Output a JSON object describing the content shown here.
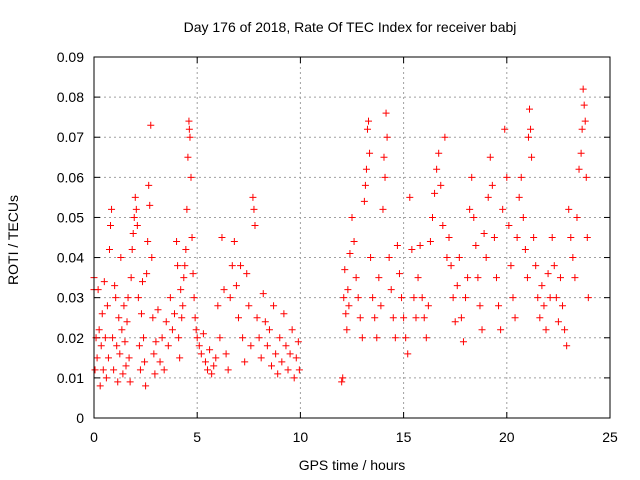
{
  "chart_data": {
    "type": "scatter",
    "title": "Day 176 of 2018, Rate Of TEC Index for receiver babj",
    "xlabel": "GPS time / hours",
    "ylabel": "ROTI / TECUs",
    "xlim": [
      0,
      25
    ],
    "ylim": [
      0,
      0.09
    ],
    "xticks": [
      0,
      5,
      10,
      15,
      20,
      25
    ],
    "yticks": [
      0,
      0.01,
      0.02,
      0.03,
      0.04,
      0.05,
      0.06,
      0.07,
      0.08,
      0.09
    ],
    "xtick_labels": [
      "0",
      "5",
      "10",
      "15",
      "20",
      "25"
    ],
    "ytick_labels": [
      "0",
      "0.01",
      "0.02",
      "0.03",
      "0.04",
      "0.05",
      "0.06",
      "0.07",
      "0.08",
      "0.09"
    ],
    "grid": true,
    "marker": "+",
    "marker_color": "#ff0000",
    "points": [
      [
        0.0,
        0.032
      ],
      [
        0.0,
        0.035
      ],
      [
        0.05,
        0.012
      ],
      [
        0.1,
        0.02
      ],
      [
        0.15,
        0.015
      ],
      [
        0.2,
        0.032
      ],
      [
        0.25,
        0.022
      ],
      [
        0.3,
        0.008
      ],
      [
        0.35,
        0.018
      ],
      [
        0.4,
        0.026
      ],
      [
        0.45,
        0.012
      ],
      [
        0.5,
        0.034
      ],
      [
        0.55,
        0.02
      ],
      [
        0.6,
        0.01
      ],
      [
        0.65,
        0.028
      ],
      [
        0.7,
        0.015
      ],
      [
        0.75,
        0.042
      ],
      [
        0.8,
        0.048
      ],
      [
        0.85,
        0.052
      ],
      [
        0.9,
        0.02
      ],
      [
        0.95,
        0.012
      ],
      [
        1.0,
        0.033
      ],
      [
        1.05,
        0.03
      ],
      [
        1.1,
        0.018
      ],
      [
        1.15,
        0.009
      ],
      [
        1.2,
        0.025
      ],
      [
        1.25,
        0.016
      ],
      [
        1.3,
        0.04
      ],
      [
        1.35,
        0.022
      ],
      [
        1.4,
        0.011
      ],
      [
        1.45,
        0.028
      ],
      [
        1.5,
        0.019
      ],
      [
        1.55,
        0.013
      ],
      [
        1.6,
        0.024
      ],
      [
        1.65,
        0.03
      ],
      [
        1.7,
        0.015
      ],
      [
        1.75,
        0.009
      ],
      [
        1.8,
        0.035
      ],
      [
        1.85,
        0.042
      ],
      [
        1.9,
        0.046
      ],
      [
        1.95,
        0.05
      ],
      [
        2.0,
        0.055
      ],
      [
        2.05,
        0.052
      ],
      [
        2.1,
        0.048
      ],
      [
        2.15,
        0.03
      ],
      [
        2.2,
        0.018
      ],
      [
        2.25,
        0.012
      ],
      [
        2.3,
        0.026
      ],
      [
        2.35,
        0.034
      ],
      [
        2.4,
        0.02
      ],
      [
        2.45,
        0.014
      ],
      [
        2.5,
        0.008
      ],
      [
        2.55,
        0.036
      ],
      [
        2.6,
        0.044
      ],
      [
        2.65,
        0.058
      ],
      [
        2.7,
        0.053
      ],
      [
        2.75,
        0.073
      ],
      [
        2.8,
        0.04
      ],
      [
        2.85,
        0.025
      ],
      [
        2.9,
        0.016
      ],
      [
        2.95,
        0.011
      ],
      [
        3.0,
        0.019
      ],
      [
        3.1,
        0.027
      ],
      [
        3.2,
        0.014
      ],
      [
        3.3,
        0.02
      ],
      [
        3.4,
        0.012
      ],
      [
        3.5,
        0.024
      ],
      [
        3.6,
        0.018
      ],
      [
        3.7,
        0.03
      ],
      [
        3.8,
        0.022
      ],
      [
        3.9,
        0.026
      ],
      [
        4.0,
        0.044
      ],
      [
        4.05,
        0.038
      ],
      [
        4.1,
        0.02
      ],
      [
        4.15,
        0.015
      ],
      [
        4.2,
        0.032
      ],
      [
        4.25,
        0.025
      ],
      [
        4.3,
        0.028
      ],
      [
        4.35,
        0.035
      ],
      [
        4.4,
        0.038
      ],
      [
        4.45,
        0.042
      ],
      [
        4.5,
        0.052
      ],
      [
        4.55,
        0.065
      ],
      [
        4.6,
        0.074
      ],
      [
        4.62,
        0.072
      ],
      [
        4.65,
        0.07
      ],
      [
        4.7,
        0.06
      ],
      [
        4.75,
        0.045
      ],
      [
        4.8,
        0.036
      ],
      [
        4.85,
        0.03
      ],
      [
        4.9,
        0.025
      ],
      [
        4.95,
        0.022
      ],
      [
        5.0,
        0.02
      ],
      [
        5.1,
        0.018
      ],
      [
        5.2,
        0.016
      ],
      [
        5.3,
        0.021
      ],
      [
        5.4,
        0.014
      ],
      [
        5.5,
        0.012
      ],
      [
        5.6,
        0.017
      ],
      [
        5.7,
        0.011
      ],
      [
        5.8,
        0.013
      ],
      [
        5.9,
        0.015
      ],
      [
        6.0,
        0.028
      ],
      [
        6.1,
        0.02
      ],
      [
        6.2,
        0.045
      ],
      [
        6.3,
        0.032
      ],
      [
        6.4,
        0.016
      ],
      [
        6.5,
        0.012
      ],
      [
        6.6,
        0.03
      ],
      [
        6.7,
        0.038
      ],
      [
        6.8,
        0.044
      ],
      [
        6.9,
        0.033
      ],
      [
        7.0,
        0.025
      ],
      [
        7.1,
        0.038
      ],
      [
        7.2,
        0.02
      ],
      [
        7.3,
        0.014
      ],
      [
        7.4,
        0.036
      ],
      [
        7.5,
        0.028
      ],
      [
        7.6,
        0.018
      ],
      [
        7.7,
        0.055
      ],
      [
        7.75,
        0.052
      ],
      [
        7.8,
        0.048
      ],
      [
        7.9,
        0.025
      ],
      [
        8.0,
        0.02
      ],
      [
        8.1,
        0.015
      ],
      [
        8.2,
        0.031
      ],
      [
        8.3,
        0.024
      ],
      [
        8.4,
        0.018
      ],
      [
        8.5,
        0.022
      ],
      [
        8.6,
        0.013
      ],
      [
        8.7,
        0.028
      ],
      [
        8.8,
        0.016
      ],
      [
        8.9,
        0.011
      ],
      [
        9.0,
        0.02
      ],
      [
        9.1,
        0.014
      ],
      [
        9.2,
        0.026
      ],
      [
        9.3,
        0.018
      ],
      [
        9.4,
        0.012
      ],
      [
        9.5,
        0.016
      ],
      [
        9.6,
        0.022
      ],
      [
        9.7,
        0.01
      ],
      [
        9.8,
        0.015
      ],
      [
        9.9,
        0.019
      ],
      [
        9.95,
        0.012
      ],
      [
        12.0,
        0.009
      ],
      [
        12.05,
        0.01
      ],
      [
        12.1,
        0.03
      ],
      [
        12.15,
        0.037
      ],
      [
        12.2,
        0.026
      ],
      [
        12.25,
        0.022
      ],
      [
        12.3,
        0.032
      ],
      [
        12.35,
        0.028
      ],
      [
        12.4,
        0.041
      ],
      [
        12.5,
        0.05
      ],
      [
        12.6,
        0.044
      ],
      [
        12.7,
        0.035
      ],
      [
        12.8,
        0.03
      ],
      [
        12.9,
        0.025
      ],
      [
        13.0,
        0.02
      ],
      [
        13.1,
        0.054
      ],
      [
        13.15,
        0.058
      ],
      [
        13.2,
        0.062
      ],
      [
        13.25,
        0.072
      ],
      [
        13.3,
        0.074
      ],
      [
        13.35,
        0.066
      ],
      [
        13.4,
        0.04
      ],
      [
        13.5,
        0.03
      ],
      [
        13.6,
        0.025
      ],
      [
        13.7,
        0.02
      ],
      [
        13.8,
        0.035
      ],
      [
        13.9,
        0.028
      ],
      [
        14.0,
        0.052
      ],
      [
        14.05,
        0.065
      ],
      [
        14.1,
        0.06
      ],
      [
        14.15,
        0.076
      ],
      [
        14.2,
        0.07
      ],
      [
        14.3,
        0.04
      ],
      [
        14.4,
        0.032
      ],
      [
        14.5,
        0.025
      ],
      [
        14.6,
        0.02
      ],
      [
        14.7,
        0.043
      ],
      [
        14.8,
        0.036
      ],
      [
        14.9,
        0.03
      ],
      [
        15.0,
        0.025
      ],
      [
        15.1,
        0.02
      ],
      [
        15.2,
        0.016
      ],
      [
        15.3,
        0.055
      ],
      [
        15.4,
        0.042
      ],
      [
        15.5,
        0.03
      ],
      [
        15.6,
        0.025
      ],
      [
        15.7,
        0.035
      ],
      [
        15.8,
        0.043
      ],
      [
        15.9,
        0.03
      ],
      [
        16.0,
        0.025
      ],
      [
        16.1,
        0.02
      ],
      [
        16.2,
        0.028
      ],
      [
        16.3,
        0.044
      ],
      [
        16.4,
        0.05
      ],
      [
        16.5,
        0.056
      ],
      [
        16.6,
        0.062
      ],
      [
        16.7,
        0.066
      ],
      [
        16.8,
        0.058
      ],
      [
        16.9,
        0.048
      ],
      [
        17.0,
        0.07
      ],
      [
        17.1,
        0.04
      ],
      [
        17.2,
        0.045
      ],
      [
        17.3,
        0.038
      ],
      [
        17.4,
        0.03
      ],
      [
        17.5,
        0.024
      ],
      [
        17.6,
        0.033
      ],
      [
        17.7,
        0.04
      ],
      [
        17.8,
        0.025
      ],
      [
        17.9,
        0.019
      ],
      [
        18.0,
        0.03
      ],
      [
        18.1,
        0.035
      ],
      [
        18.2,
        0.052
      ],
      [
        18.3,
        0.06
      ],
      [
        18.4,
        0.05
      ],
      [
        18.5,
        0.043
      ],
      [
        18.6,
        0.035
      ],
      [
        18.7,
        0.028
      ],
      [
        18.8,
        0.022
      ],
      [
        18.9,
        0.046
      ],
      [
        19.0,
        0.04
      ],
      [
        19.1,
        0.055
      ],
      [
        19.2,
        0.065
      ],
      [
        19.3,
        0.058
      ],
      [
        19.4,
        0.045
      ],
      [
        19.5,
        0.035
      ],
      [
        19.6,
        0.028
      ],
      [
        19.7,
        0.022
      ],
      [
        19.8,
        0.052
      ],
      [
        19.9,
        0.072
      ],
      [
        20.0,
        0.06
      ],
      [
        20.1,
        0.048
      ],
      [
        20.2,
        0.038
      ],
      [
        20.3,
        0.03
      ],
      [
        20.4,
        0.025
      ],
      [
        20.5,
        0.045
      ],
      [
        20.6,
        0.055
      ],
      [
        20.7,
        0.06
      ],
      [
        20.8,
        0.05
      ],
      [
        20.9,
        0.042
      ],
      [
        21.0,
        0.035
      ],
      [
        21.05,
        0.07
      ],
      [
        21.1,
        0.077
      ],
      [
        21.15,
        0.072
      ],
      [
        21.2,
        0.065
      ],
      [
        21.3,
        0.045
      ],
      [
        21.4,
        0.038
      ],
      [
        21.5,
        0.03
      ],
      [
        21.6,
        0.025
      ],
      [
        21.7,
        0.033
      ],
      [
        21.8,
        0.028
      ],
      [
        21.9,
        0.022
      ],
      [
        22.0,
        0.036
      ],
      [
        22.1,
        0.03
      ],
      [
        22.2,
        0.045
      ],
      [
        22.3,
        0.038
      ],
      [
        22.4,
        0.03
      ],
      [
        22.5,
        0.024
      ],
      [
        22.6,
        0.035
      ],
      [
        22.7,
        0.028
      ],
      [
        22.8,
        0.022
      ],
      [
        22.9,
        0.018
      ],
      [
        23.0,
        0.052
      ],
      [
        23.1,
        0.045
      ],
      [
        23.2,
        0.04
      ],
      [
        23.3,
        0.035
      ],
      [
        23.4,
        0.05
      ],
      [
        23.5,
        0.062
      ],
      [
        23.6,
        0.066
      ],
      [
        23.65,
        0.072
      ],
      [
        23.7,
        0.082
      ],
      [
        23.75,
        0.078
      ],
      [
        23.8,
        0.074
      ],
      [
        23.85,
        0.06
      ],
      [
        23.9,
        0.045
      ],
      [
        23.95,
        0.03
      ]
    ]
  }
}
